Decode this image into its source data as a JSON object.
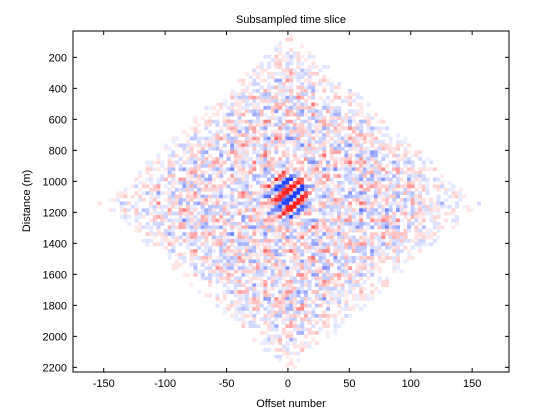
{
  "chart_data": {
    "type": "heatmap",
    "title": "Subsampled time slice",
    "xlabel": "Offset number",
    "ylabel": "Distance (m)",
    "xlim": [
      -175,
      180
    ],
    "ylim": [
      2230,
      30
    ],
    "y_reversed": true,
    "x_ticks": [
      -150,
      -100,
      -50,
      0,
      50,
      100,
      150
    ],
    "y_ticks": [
      200,
      400,
      600,
      800,
      1000,
      1200,
      1400,
      1600,
      1800,
      2000,
      2200
    ],
    "grid": false,
    "colormap": {
      "negative": "#2040ff",
      "zero": "#ffffff",
      "positive": "#ff2020"
    },
    "data_extent": {
      "offset_range": [
        -155,
        155
      ],
      "distance_range": [
        30,
        2230
      ],
      "center": [
        0,
        1130
      ],
      "shape": "diamond"
    }
  }
}
